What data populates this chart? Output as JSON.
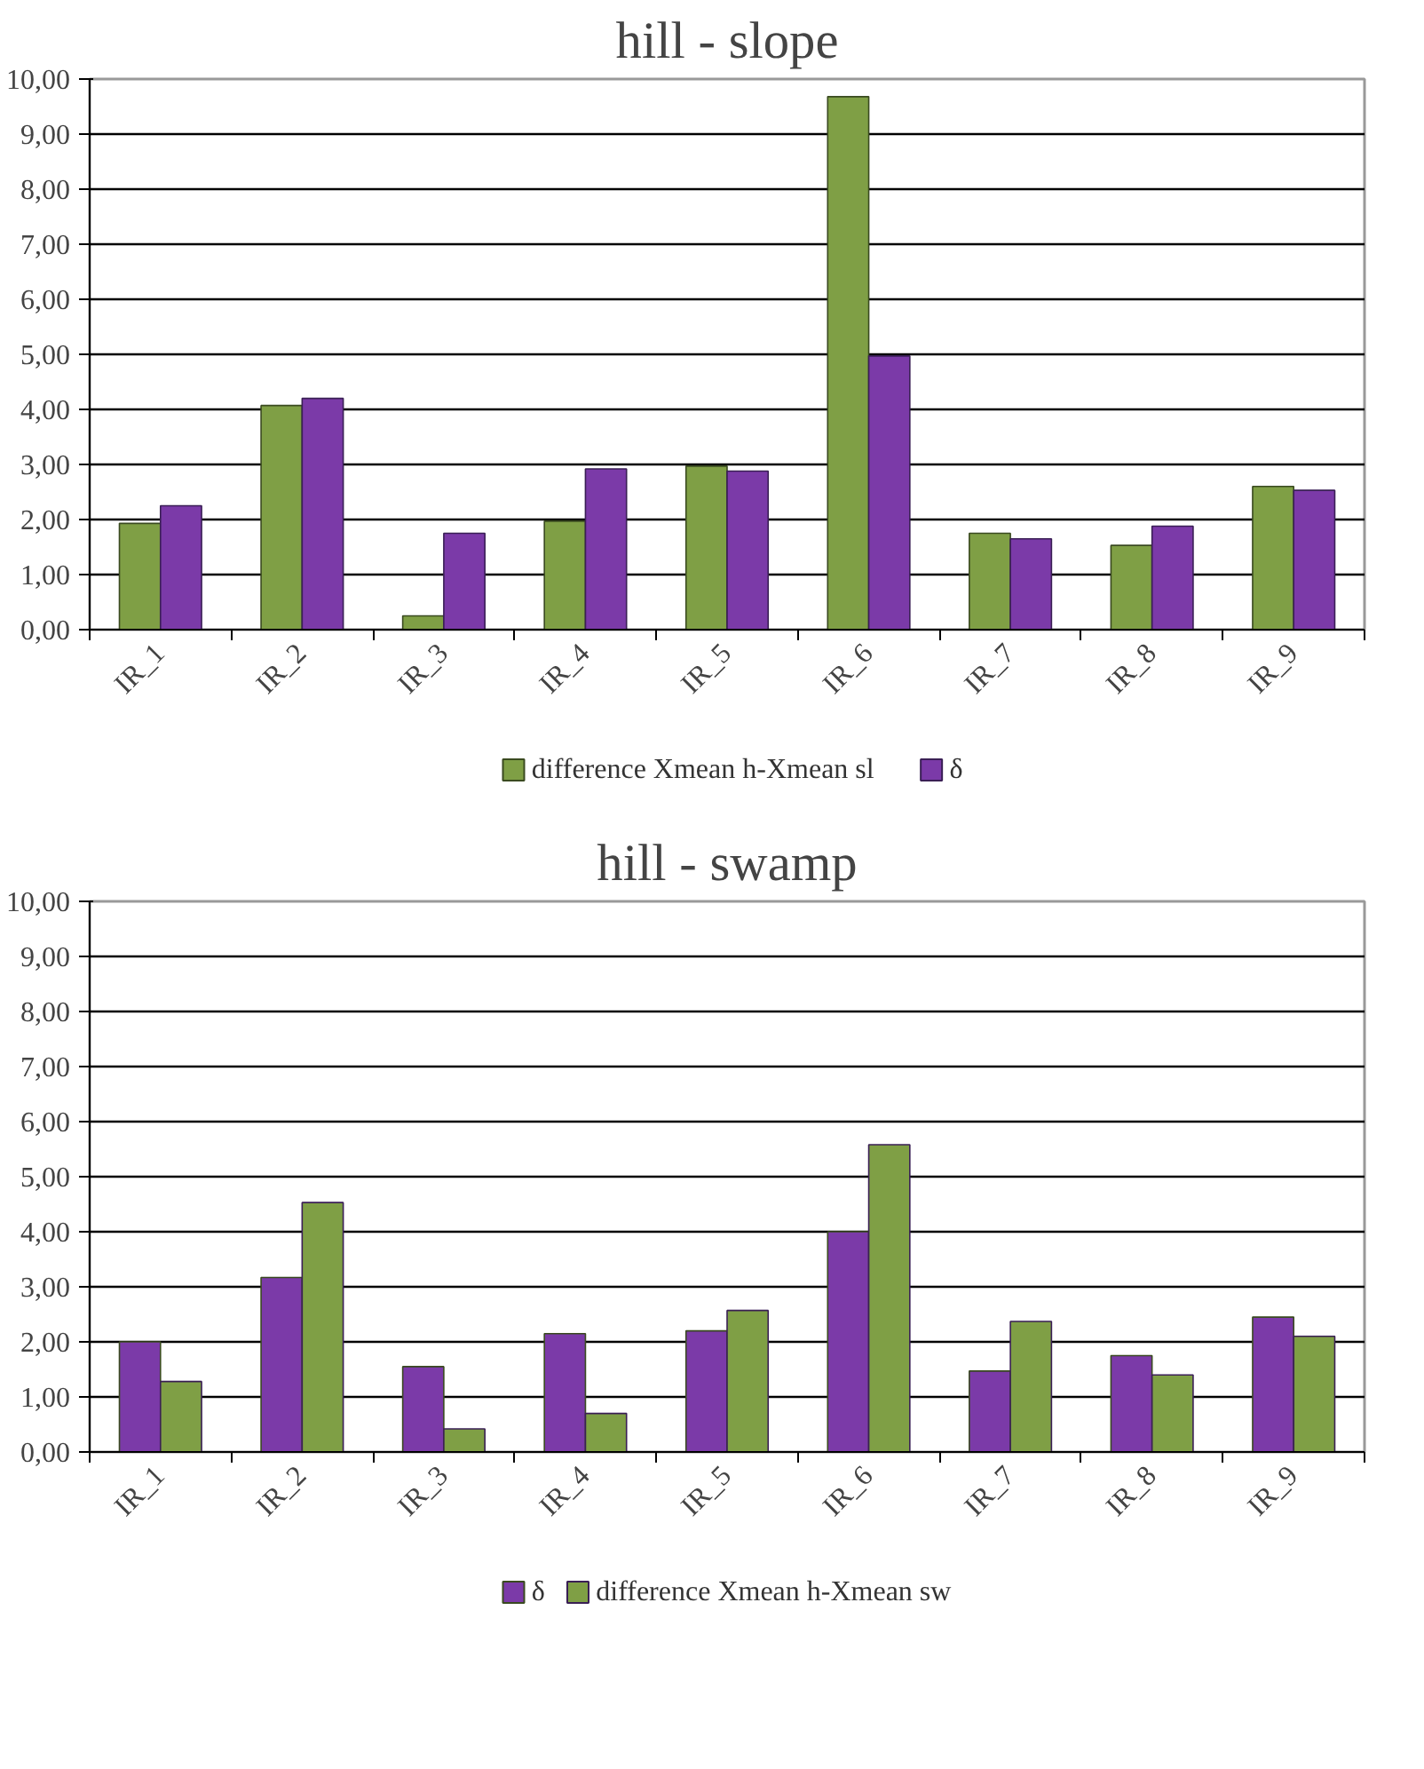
{
  "chart_data": [
    {
      "type": "bar",
      "title": "hill - slope",
      "categories": [
        "IR_1",
        "IR_2",
        "IR_3",
        "IR_4",
        "IR_5",
        "IR_6",
        "IR_7",
        "IR_8",
        "IR_9"
      ],
      "series": [
        {
          "name": "difference Xmean h-Xmean sl",
          "color": "#7f9f45",
          "values": [
            1.93,
            4.07,
            0.25,
            1.97,
            2.97,
            9.68,
            1.75,
            1.53,
            2.6
          ]
        },
        {
          "name": "δ",
          "color": "#7b3aa8",
          "values": [
            2.25,
            4.2,
            1.75,
            2.92,
            2.88,
            4.97,
            1.65,
            1.88,
            2.53
          ]
        }
      ],
      "ylim": [
        0,
        10
      ],
      "yticks": [
        {
          "value": 0,
          "label": "0,00"
        },
        {
          "value": 1,
          "label": "1,00"
        },
        {
          "value": 2,
          "label": "2,00"
        },
        {
          "value": 3,
          "label": "3,00"
        },
        {
          "value": 4,
          "label": "4,00"
        },
        {
          "value": 5,
          "label": "5,00"
        },
        {
          "value": 6,
          "label": "6,00"
        },
        {
          "value": 7,
          "label": "7,00"
        },
        {
          "value": 8,
          "label": "8,00"
        },
        {
          "value": 9,
          "label": "9,00"
        },
        {
          "value": 10,
          "label": "10,00"
        }
      ],
      "grid": "y",
      "legend": "bottom"
    },
    {
      "type": "bar",
      "title": "hill - swamp",
      "categories": [
        "IR_1",
        "IR_2",
        "IR_3",
        "IR_4",
        "IR_5",
        "IR_6",
        "IR_7",
        "IR_8",
        "IR_9"
      ],
      "series": [
        {
          "name": "δ",
          "color": "#7b3aa8",
          "values": [
            2.0,
            3.17,
            1.55,
            2.15,
            2.2,
            4.0,
            1.47,
            1.75,
            2.45
          ]
        },
        {
          "name": "difference Xmean h-Xmean sw",
          "color": "#7f9f45",
          "values": [
            1.28,
            4.53,
            0.42,
            0.7,
            2.57,
            5.58,
            2.37,
            1.4,
            2.1
          ]
        }
      ],
      "ylim": [
        0,
        10
      ],
      "yticks": [
        {
          "value": 0,
          "label": "0,00"
        },
        {
          "value": 1,
          "label": "1,00"
        },
        {
          "value": 2,
          "label": "2,00"
        },
        {
          "value": 3,
          "label": "3,00"
        },
        {
          "value": 4,
          "label": "4,00"
        },
        {
          "value": 5,
          "label": "5,00"
        },
        {
          "value": 6,
          "label": "6,00"
        },
        {
          "value": 7,
          "label": "7,00"
        },
        {
          "value": 8,
          "label": "8,00"
        },
        {
          "value": 9,
          "label": "9,00"
        },
        {
          "value": 10,
          "label": "10,00"
        }
      ],
      "grid": "y",
      "legend": "bottom"
    }
  ]
}
